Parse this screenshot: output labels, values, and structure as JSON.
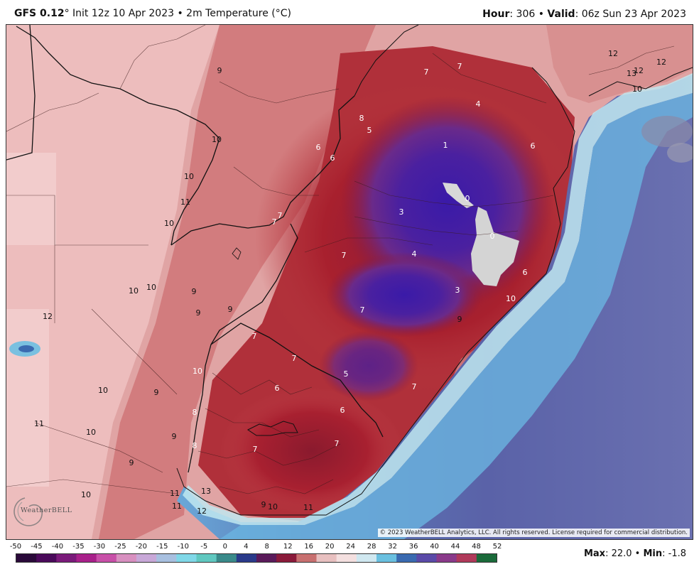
{
  "header": {
    "model": "GFS 0.12",
    "init_text": "° Init 12z 10 Apr 2023 • 2m Temperature (°C)",
    "hour_label": "Hour",
    "hour_value": ": 306 • ",
    "valid_label": "Valid",
    "valid_value": ": 06z Sun 23 Apr 2023"
  },
  "map": {
    "copyright": "© 2023 WeatherBELL Analytics, LLC. All rights reserved. License required for commercial distribution.",
    "logo_text": "WeatherBELL",
    "colors": {
      "warm_pink": "#e8b4b4",
      "warm_rose": "#d47a7a",
      "deep_red": "#a8202e",
      "maroon": "#8a1a3c",
      "purple": "#6a2a8a",
      "blue_core": "#3a1aa8",
      "near_zero": "#d8d8d8",
      "ocean_blue": "#5a6aa8",
      "ocean_light": "#7abce0",
      "ocean_cyan": "#bfe8f0",
      "border": "#111111"
    },
    "labels": [
      {
        "text": "12"
      },
      {
        "text": "13"
      },
      {
        "text": "12"
      },
      {
        "text": "12"
      },
      {
        "text": "7"
      },
      {
        "text": "7"
      },
      {
        "text": "9"
      },
      {
        "text": "10"
      },
      {
        "text": "4"
      },
      {
        "text": "8"
      },
      {
        "text": "5"
      },
      {
        "text": "10"
      },
      {
        "text": "6"
      },
      {
        "text": "1"
      },
      {
        "text": "6"
      },
      {
        "text": "6"
      },
      {
        "text": "10"
      },
      {
        "text": "0"
      },
      {
        "text": "11"
      },
      {
        "text": "3"
      },
      {
        "text": "7"
      },
      {
        "text": "7"
      },
      {
        "text": "10"
      },
      {
        "text": "0"
      },
      {
        "text": "7"
      },
      {
        "text": "4"
      },
      {
        "text": "6"
      },
      {
        "text": "10"
      },
      {
        "text": "10"
      },
      {
        "text": "9"
      },
      {
        "text": "3"
      },
      {
        "text": "10"
      },
      {
        "text": "9"
      },
      {
        "text": "9"
      },
      {
        "text": "7"
      },
      {
        "text": "12"
      },
      {
        "text": "9"
      },
      {
        "text": "7"
      },
      {
        "text": "7"
      },
      {
        "text": "10"
      },
      {
        "text": "5"
      },
      {
        "text": "10"
      },
      {
        "text": "9"
      },
      {
        "text": "6"
      },
      {
        "text": "7"
      },
      {
        "text": "8"
      },
      {
        "text": "6"
      },
      {
        "text": "11"
      },
      {
        "text": "10"
      },
      {
        "text": "9"
      },
      {
        "text": "7"
      },
      {
        "text": "8"
      },
      {
        "text": "7"
      },
      {
        "text": "9"
      },
      {
        "text": "10"
      },
      {
        "text": "11"
      },
      {
        "text": "13"
      },
      {
        "text": "11"
      },
      {
        "text": "12"
      },
      {
        "text": "9"
      },
      {
        "text": "10"
      },
      {
        "text": "11"
      }
    ]
  },
  "legend": {
    "ticks": [
      "-50",
      "-45",
      "-40",
      "-35",
      "-30",
      "-25",
      "-20",
      "-15",
      "-10",
      "-5",
      "0",
      "4",
      "8",
      "12",
      "16",
      "20",
      "24",
      "28",
      "32",
      "36",
      "40",
      "44",
      "48",
      "52"
    ],
    "colors": [
      "#2a0a3a",
      "#4a0a5a",
      "#7a1a7a",
      "#a8208a",
      "#c850a8",
      "#d890c0",
      "#c8a8d8",
      "#a8c0e0",
      "#80d8e8",
      "#60c8c0",
      "#3a8a8a",
      "#2a3a8a",
      "#5a1a5a",
      "#8a1a3a",
      "#c87070",
      "#e8c0c0",
      "#f4e0e0",
      "#d0e8f0",
      "#6ac0e0",
      "#3a6ab0",
      "#5a4aa8",
      "#8a3a8a",
      "#b03a5a",
      "#1a6a3a"
    ]
  },
  "stats": {
    "max_label": "Max",
    "max_value": ": 22.0 • ",
    "min_label": "Min",
    "min_value": ": -1.8"
  }
}
